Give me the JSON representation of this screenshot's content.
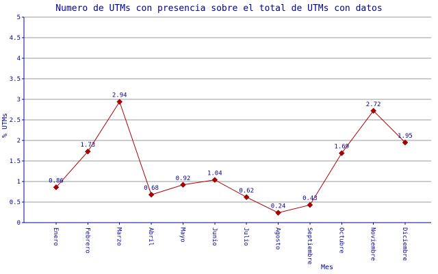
{
  "chart_data": {
    "type": "line",
    "title": "Numero de UTMs con presencia sobre el total de UTMs con datos",
    "xlabel": "Mes",
    "ylabel": "% UTMs",
    "categories": [
      "Enero",
      "Febrero",
      "Marzo",
      "Abril",
      "Mayo",
      "Junio",
      "Julio",
      "Agosto",
      "Septiembre",
      "Octubre",
      "Noviembre",
      "Diciembre"
    ],
    "values": [
      0.86,
      1.73,
      2.94,
      0.68,
      0.92,
      1.04,
      0.62,
      0.24,
      0.43,
      1.69,
      2.72,
      1.95
    ],
    "point_labels": [
      "0.86",
      "1.73",
      "2.94",
      "0.68",
      "0.92",
      "1.04",
      "0.62",
      "0.24",
      "0.43",
      "1.69",
      "2.72",
      "1.95"
    ],
    "ylim": [
      0,
      5
    ],
    "ytick_step": 0.5,
    "grid": true,
    "legend": "none",
    "colors": {
      "line": "#aa0000",
      "marker": "#aa0000",
      "marker_edge": "#770000",
      "grid": "#999999",
      "axis": "#000099",
      "text": "#000099",
      "background": "#ffffff"
    }
  }
}
